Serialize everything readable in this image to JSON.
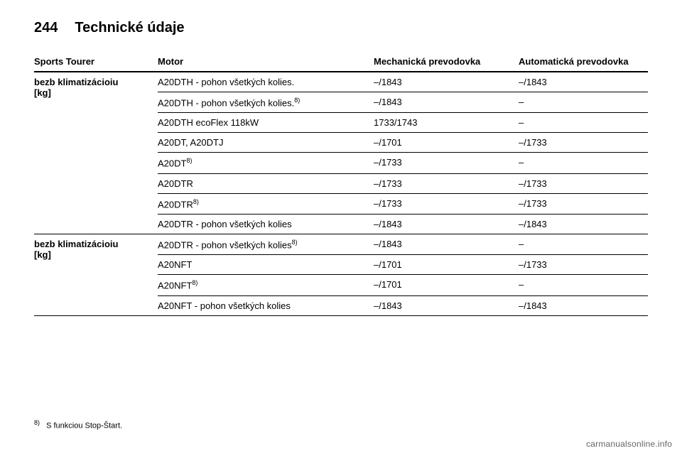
{
  "header": {
    "page_number": "244",
    "title": "Technické údaje"
  },
  "table": {
    "columns": {
      "group": "Sports Tourer",
      "engine": "Motor",
      "manual": "Mechanická prevodovka",
      "auto": "Automatická prevodovka"
    },
    "group1_label_line1": "bezb klimatizácioiu",
    "group1_label_line2": "[kg]",
    "group2_label_line1": "bezb klimatizácioiu",
    "group2_label_line2": "[kg]",
    "rows": [
      {
        "engine": "A20DTH - pohon všetkých kolies.",
        "sup": "",
        "manual": "–/1843",
        "auto": "–/1843"
      },
      {
        "engine": "A20DTH - pohon všetkých kolies.",
        "sup": "8)",
        "manual": "–/1843",
        "auto": "–"
      },
      {
        "engine": "A20DTH ecoFlex 118kW",
        "sup": "",
        "manual": "1733/1743",
        "auto": "–"
      },
      {
        "engine": "A20DT, A20DTJ",
        "sup": "",
        "manual": "–/1701",
        "auto": "–/1733"
      },
      {
        "engine": "A20DT",
        "sup": "8)",
        "manual": "–/1733",
        "auto": "–"
      },
      {
        "engine": "A20DTR",
        "sup": "",
        "manual": "–/1733",
        "auto": "–/1733"
      },
      {
        "engine": "A20DTR",
        "sup": "8)",
        "manual": "–/1733",
        "auto": "–/1733"
      },
      {
        "engine": "A20DTR - pohon všetkých kolies",
        "sup": "",
        "manual": "–/1843",
        "auto": "–/1843"
      },
      {
        "engine": "A20DTR - pohon všetkých kolies",
        "sup": "8)",
        "manual": "–/1843",
        "auto": "–"
      },
      {
        "engine": "A20NFT",
        "sup": "",
        "manual": "–/1701",
        "auto": "–/1733"
      },
      {
        "engine": "A20NFT",
        "sup": "8)",
        "manual": "–/1701",
        "auto": "–"
      },
      {
        "engine": "A20NFT - pohon všetkých kolies",
        "sup": "",
        "manual": "–/1843",
        "auto": "–/1843"
      }
    ],
    "group_split_index": 8
  },
  "footnote": {
    "mark": "8)",
    "text": "S funkciou Stop-Štart."
  },
  "watermark": "carmanualsonline.info"
}
